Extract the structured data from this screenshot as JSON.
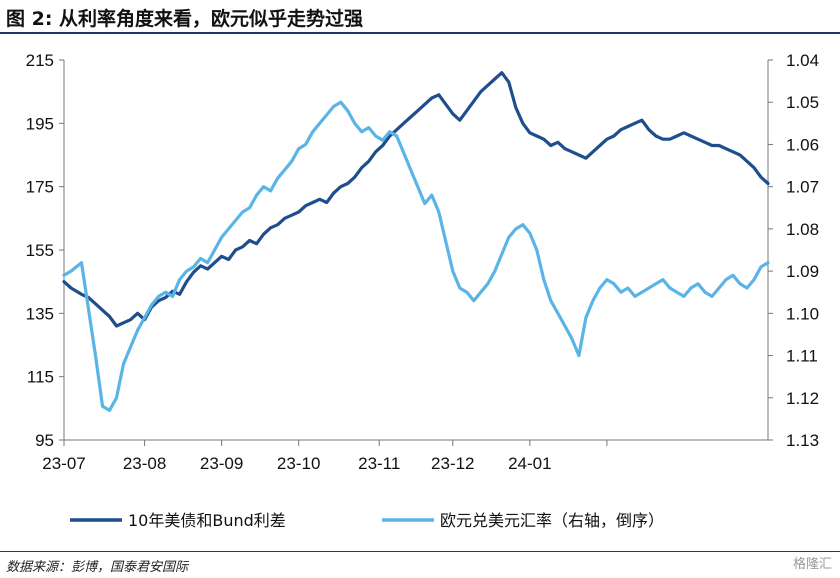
{
  "header": {
    "title": "图 2:  从利率角度来看，欧元似乎走势过强"
  },
  "footer": {
    "source": "数据来源：彭博，国泰君安国际",
    "watermark": "格隆汇"
  },
  "chart_data": {
    "type": "line",
    "title": "从利率角度来看，欧元似乎走势过强",
    "xlabel": "",
    "x_ticks": [
      "23-07",
      "23-08",
      "23-09",
      "23-10",
      "23-11",
      "23-12",
      "24-01"
    ],
    "y_left": {
      "ylim": [
        95,
        215
      ],
      "ticks": [
        "95",
        "115",
        "135",
        "155",
        "175",
        "195",
        "215"
      ]
    },
    "y_right": {
      "ylim": [
        1.04,
        1.13
      ],
      "inverted": true,
      "ticks": [
        "1.04",
        "1.05",
        "1.06",
        "1.07",
        "1.08",
        "1.09",
        "1.10",
        "1.11",
        "1.12",
        "1.13"
      ]
    },
    "grid": false,
    "legend": "bottom",
    "series": [
      {
        "name": "10年美债和Bund利差",
        "axis": "left",
        "color": "#1f4e8c",
        "x": [
          0,
          2,
          5,
          7,
          9,
          11,
          13,
          15,
          17,
          19,
          21,
          23,
          25,
          27,
          29,
          31,
          33,
          35,
          37,
          39,
          41,
          43,
          45,
          47,
          49,
          51,
          53,
          55,
          57,
          59,
          61,
          63,
          65,
          67,
          69,
          71,
          73,
          75,
          77,
          79,
          81,
          83,
          85,
          87,
          89,
          91,
          93,
          95,
          97,
          99,
          101,
          103,
          105,
          107,
          109,
          111,
          113,
          115,
          117,
          119,
          121,
          123,
          125,
          127,
          129,
          131,
          133,
          135,
          137,
          139,
          141,
          143,
          145,
          147,
          149,
          151,
          153,
          155,
          157,
          159,
          161,
          163,
          165,
          167,
          169,
          171,
          173,
          175,
          177,
          179,
          181,
          183,
          185,
          187,
          189,
          191,
          193,
          195,
          197,
          199,
          201
        ],
        "values": [
          145,
          143,
          141,
          140,
          138,
          136,
          134,
          131,
          132,
          133,
          135,
          133,
          137,
          139,
          140,
          142,
          141,
          145,
          148,
          150,
          149,
          151,
          153,
          152,
          155,
          156,
          158,
          157,
          160,
          162,
          163,
          165,
          166,
          167,
          169,
          170,
          171,
          170,
          173,
          175,
          176,
          178,
          181,
          183,
          186,
          188,
          191,
          193,
          195,
          197,
          199,
          201,
          203,
          204,
          201,
          198,
          196,
          199,
          202,
          205,
          207,
          209,
          211,
          208,
          200,
          195,
          192,
          191,
          190,
          188,
          189,
          187,
          186,
          185,
          184,
          186,
          188,
          190,
          191,
          193,
          194,
          195,
          196,
          193,
          191,
          190,
          190,
          191,
          192,
          191,
          190,
          189,
          188,
          188,
          187,
          186,
          185,
          183,
          181,
          178,
          176
        ],
        "note_x": "x = trading day index from 23-07 start"
      },
      {
        "name": "欧元兑美元汇率（右轴，倒序）",
        "axis": "right",
        "color": "#5ab4e5",
        "x": [
          0,
          2,
          5,
          7,
          9,
          11,
          13,
          15,
          17,
          19,
          21,
          23,
          25,
          27,
          29,
          31,
          33,
          35,
          37,
          39,
          41,
          43,
          45,
          47,
          49,
          51,
          53,
          55,
          57,
          59,
          61,
          63,
          65,
          67,
          69,
          71,
          73,
          75,
          77,
          79,
          81,
          83,
          85,
          87,
          89,
          91,
          93,
          95,
          97,
          99,
          101,
          103,
          105,
          107,
          109,
          111,
          113,
          115,
          117,
          119,
          121,
          123,
          125,
          127,
          129,
          131,
          133,
          135,
          137,
          139,
          141,
          143,
          145,
          147,
          149,
          151,
          153,
          155,
          157,
          159,
          161,
          163,
          165,
          167,
          169,
          171,
          173,
          175,
          177,
          179,
          181,
          183,
          185,
          187,
          189,
          191,
          193,
          195,
          197,
          199,
          201
        ],
        "values": [
          1.091,
          1.09,
          1.088,
          1.099,
          1.11,
          1.122,
          1.123,
          1.12,
          1.112,
          1.108,
          1.104,
          1.101,
          1.098,
          1.096,
          1.095,
          1.096,
          1.092,
          1.09,
          1.089,
          1.087,
          1.088,
          1.085,
          1.082,
          1.08,
          1.078,
          1.076,
          1.075,
          1.072,
          1.07,
          1.071,
          1.068,
          1.066,
          1.064,
          1.061,
          1.06,
          1.057,
          1.055,
          1.053,
          1.051,
          1.05,
          1.052,
          1.055,
          1.057,
          1.056,
          1.058,
          1.059,
          1.057,
          1.058,
          1.062,
          1.066,
          1.07,
          1.074,
          1.072,
          1.076,
          1.083,
          1.09,
          1.094,
          1.095,
          1.097,
          1.095,
          1.093,
          1.09,
          1.086,
          1.082,
          1.08,
          1.079,
          1.081,
          1.085,
          1.092,
          1.097,
          1.1,
          1.103,
          1.106,
          1.11,
          1.101,
          1.097,
          1.094,
          1.092,
          1.093,
          1.095,
          1.094,
          1.096,
          1.095,
          1.094,
          1.093,
          1.092,
          1.094,
          1.095,
          1.096,
          1.094,
          1.093,
          1.095,
          1.096,
          1.094,
          1.092,
          1.091,
          1.093,
          1.094,
          1.092,
          1.089,
          1.088
        ]
      }
    ]
  }
}
